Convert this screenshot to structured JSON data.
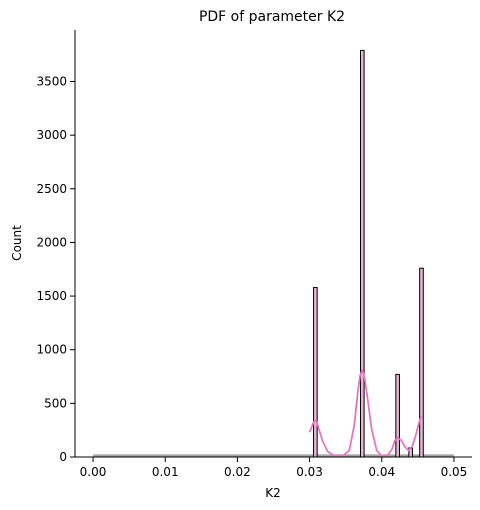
{
  "chart_data": {
    "type": "bar",
    "title": "PDF of parameter K2",
    "xlabel": "K2",
    "ylabel": "Count",
    "xlim": [
      -0.0025,
      0.0525
    ],
    "ylim": [
      0,
      3980
    ],
    "xticks": [
      0.0,
      0.01,
      0.02,
      0.03,
      0.04,
      0.05
    ],
    "xtick_labels": [
      "0.00",
      "0.01",
      "0.02",
      "0.03",
      "0.04",
      "0.05"
    ],
    "yticks": [
      0,
      500,
      1000,
      1500,
      2000,
      2500,
      3000,
      3500
    ],
    "ytick_labels": [
      "0",
      "500",
      "1000",
      "1500",
      "2000",
      "2500",
      "3000",
      "3500"
    ],
    "grid": false,
    "legend": "none",
    "bin_width": 0.0005,
    "bins": [
      {
        "x": 0.0308,
        "count": 1580
      },
      {
        "x": 0.0373,
        "count": 3790
      },
      {
        "x": 0.0422,
        "count": 770
      },
      {
        "x": 0.044,
        "count": 85
      },
      {
        "x": 0.0455,
        "count": 1760
      }
    ],
    "baseline_band": {
      "x": [
        0.0,
        0.05
      ],
      "count": 25
    },
    "kde_curve": {
      "x": [
        0.03,
        0.0306,
        0.0309,
        0.0312,
        0.0318,
        0.0325,
        0.0335,
        0.0345,
        0.0355,
        0.0362,
        0.0367,
        0.037,
        0.0373,
        0.0376,
        0.038,
        0.0386,
        0.0393,
        0.04,
        0.0407,
        0.0414,
        0.0418,
        0.0422,
        0.0427,
        0.0432,
        0.0437,
        0.0442,
        0.0447,
        0.0452,
        0.0455
      ],
      "y": [
        230,
        330,
        340,
        280,
        150,
        50,
        8,
        4,
        60,
        300,
        620,
        760,
        810,
        750,
        560,
        260,
        60,
        8,
        8,
        70,
        150,
        180,
        155,
        95,
        60,
        95,
        200,
        330,
        380
      ]
    },
    "colors": {
      "bar_fill": "#E8B4D6",
      "bar_edge": "#000000",
      "kde_line": "#E377C2",
      "baseline_band": "#888888"
    }
  }
}
